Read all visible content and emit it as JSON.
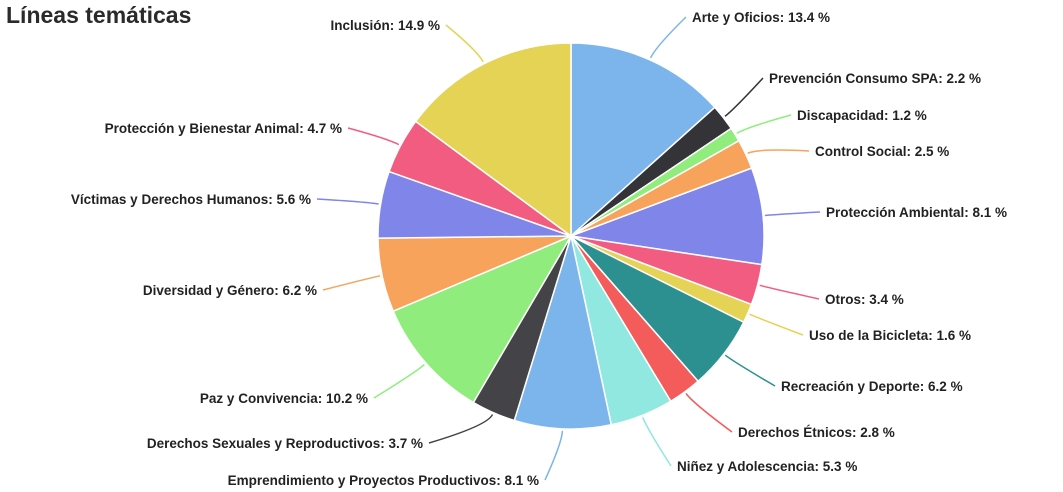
{
  "page": {
    "title": "Líneas temáticas"
  },
  "chart_data": {
    "type": "pie",
    "title": "Líneas temáticas",
    "slices": [
      {
        "name": "Arte y Oficios",
        "value": 13.4,
        "label": "Arte y Oficios: 13.4 %",
        "color": "#7cb5ec"
      },
      {
        "name": "Prevención Consumo SPA",
        "value": 2.2,
        "label": "Prevención Consumo SPA: 2.2 %",
        "color": "#333338"
      },
      {
        "name": "Discapacidad",
        "value": 1.2,
        "label": "Discapacidad: 1.2 %",
        "color": "#90ed7d"
      },
      {
        "name": "Control Social",
        "value": 2.5,
        "label": "Control Social: 2.5 %",
        "color": "#f7a35c"
      },
      {
        "name": "Protección Ambiental",
        "value": 8.1,
        "label": "Protección Ambiental: 8.1 %",
        "color": "#8085e9"
      },
      {
        "name": "Otros",
        "value": 3.4,
        "label": "Otros: 3.4 %",
        "color": "#f15c80"
      },
      {
        "name": "Uso de la Bicicleta",
        "value": 1.6,
        "label": "Uso de la Bicicleta: 1.6 %",
        "color": "#e4d354"
      },
      {
        "name": "Recreación y Deporte",
        "value": 6.2,
        "label": "Recreación y Deporte: 6.2 %",
        "color": "#2b908f"
      },
      {
        "name": "Derechos Étnicos",
        "value": 2.8,
        "label": "Derechos Étnicos: 2.8 %",
        "color": "#f45b5b"
      },
      {
        "name": "Niñez y Adolescencia",
        "value": 5.3,
        "label": "Niñez y Adolescencia: 5.3 %",
        "color": "#91e8e1"
      },
      {
        "name": "Emprendimiento y Proyectos Productivos",
        "value": 8.1,
        "label": "Emprendimiento y Proyectos Productivos: 8.1 %",
        "color": "#7cb5ec"
      },
      {
        "name": "Derechos Sexuales y Reproductivos",
        "value": 3.7,
        "label": "Derechos Sexuales y Reproductivos: 3.7 %",
        "color": "#434348"
      },
      {
        "name": "Paz y Convivencia",
        "value": 10.2,
        "label": "Paz y Convivencia: 10.2 %",
        "color": "#90ed7d"
      },
      {
        "name": "Diversidad y Género",
        "value": 6.2,
        "label": "Diversidad y Género: 6.2 %",
        "color": "#f7a35c"
      },
      {
        "name": "Víctimas y Derechos Humanos",
        "value": 5.6,
        "label": "Víctimas y Derechos Humanos: 5.6 %",
        "color": "#8085e9"
      },
      {
        "name": "Protección y Bienestar Animal",
        "value": 4.7,
        "label": "Protección y Bienestar Animal: 4.7 %",
        "color": "#f15c80"
      },
      {
        "name": "Inclusión",
        "value": 14.9,
        "label": "Inclusión: 14.9 %",
        "color": "#e4d354"
      }
    ]
  }
}
